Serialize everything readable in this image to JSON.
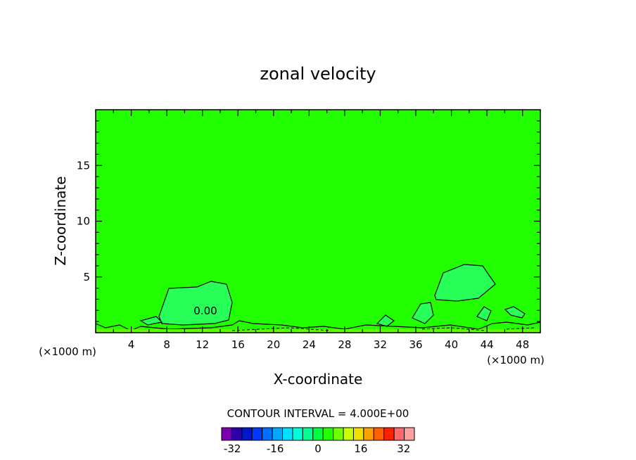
{
  "chart_data": {
    "type": "contour",
    "title": "zonal velocity",
    "xlabel": "X-coordinate",
    "ylabel": "Z-coordinate",
    "x_unit_label": "(×1000 m)",
    "z_unit_label": "(×1000 m)",
    "xlim": [
      0,
      50
    ],
    "ylim": [
      0,
      20
    ],
    "x_ticks": [
      4,
      8,
      12,
      16,
      20,
      24,
      28,
      32,
      36,
      40,
      44,
      48
    ],
    "y_ticks": [
      5,
      10,
      15
    ],
    "background_color": "#22ff00",
    "contour_annotation": "0.00",
    "contour_interval_text": "CONTOUR INTERVAL = 4.000E+00",
    "colorbar": {
      "levels": 18,
      "min": -36,
      "max": 36,
      "tick_values": [
        -32,
        -16,
        0,
        16,
        32
      ],
      "tick_labels": [
        "-32",
        "-16",
        "0",
        "16",
        "32"
      ],
      "colors": [
        "#7a00b0",
        "#2b00a8",
        "#0018c8",
        "#0038ff",
        "#0070ff",
        "#00a8ff",
        "#00e0ff",
        "#00ffd8",
        "#00ff90",
        "#00ff40",
        "#22ff00",
        "#70ff00",
        "#c8ff00",
        "#f0e000",
        "#ffa000",
        "#ff6000",
        "#ff2000",
        "#ff6868",
        "#ffa0a0"
      ]
    },
    "regions": [
      {
        "name": "weak positive blob",
        "x": [
          9.5,
          15
        ],
        "z": [
          0.8,
          4.6
        ],
        "color": "#28ff58"
      },
      {
        "name": "weak positive blob",
        "x": [
          38,
          44
        ],
        "z": [
          2.8,
          6.2
        ],
        "color": "#28ff58"
      },
      {
        "name": "weak positive blob",
        "x": [
          36,
          38
        ],
        "z": [
          0.5,
          2.8
        ],
        "color": "#28ff58"
      },
      {
        "name": "weak negative strip",
        "x": [
          0,
          50
        ],
        "z": [
          0,
          0.5
        ],
        "color": "#5cff00"
      }
    ]
  }
}
